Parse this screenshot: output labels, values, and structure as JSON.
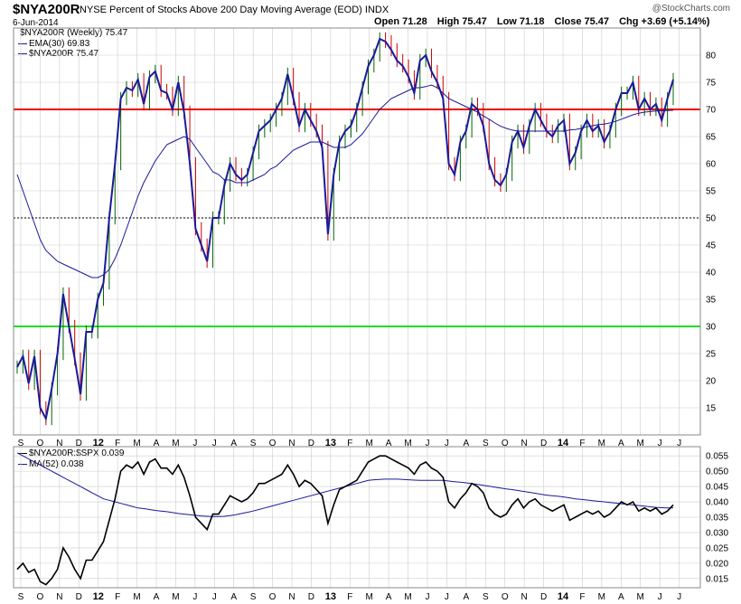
{
  "header": {
    "symbol": "$NYA200R",
    "description": "NYSE Percent of Stocks Above 200 Day Moving Average (EOD)  INDX",
    "date": "6-Jun-2014",
    "logo": "@StockCharts.com",
    "ohlc": {
      "open": "Open 71.28",
      "high": "High 75.47",
      "low": "Low 71.18",
      "close": "Close 75.47",
      "chg": "Chg +3.69 (+5.14%)"
    }
  },
  "colors": {
    "price": "#1a1a99",
    "ema": "#1a1a99",
    "up": "#006600",
    "down": "#cc0000",
    "red_line": "#ee0000",
    "green_line": "#22dd22",
    "ratio": "#000000",
    "ma": "#1a1a99",
    "grid": "#cccccc"
  },
  "chart_data": [
    {
      "type": "line",
      "legend": [
        "$NYA200R (Weekly) 75.47",
        "EMA(30) 69.83",
        "$NYA200R 75.47"
      ],
      "x_tick_labels": [
        "S",
        "O",
        "N",
        "D",
        "12",
        "F",
        "M",
        "A",
        "M",
        "J",
        "J",
        "A",
        "S",
        "O",
        "N",
        "D",
        "13",
        "F",
        "M",
        "A",
        "M",
        "J",
        "J",
        "A",
        "S",
        "O",
        "N",
        "D",
        "14",
        "F",
        "M",
        "A",
        "M",
        "J",
        "J"
      ],
      "y_ticks": [
        15,
        20,
        25,
        30,
        35,
        40,
        45,
        50,
        55,
        60,
        65,
        70,
        75,
        80
      ],
      "ylim": [
        10,
        85
      ],
      "horizontal_lines": [
        70,
        50,
        30
      ],
      "series": [
        {
          "values": [
            22.5,
            24.5,
            19.5,
            24.5,
            15,
            13,
            18.5,
            25,
            36,
            30,
            24,
            17.5,
            29,
            29,
            35,
            38,
            50,
            60,
            72,
            74,
            73.5,
            75.5,
            71,
            76,
            77,
            73.5,
            73,
            70,
            75,
            69.5,
            60,
            48,
            45,
            42,
            50,
            50,
            56,
            60,
            58,
            57,
            58,
            62,
            66,
            67,
            68,
            70,
            72,
            76.5,
            72,
            67,
            70,
            68,
            66,
            63,
            47,
            58,
            64,
            66,
            67,
            70,
            74,
            78,
            80,
            83,
            82.5,
            81,
            79,
            78,
            76,
            73,
            79,
            80,
            77,
            75,
            72,
            60,
            58,
            64,
            66,
            71,
            70,
            67,
            60,
            57,
            56,
            58,
            64,
            66,
            63,
            67,
            70,
            68,
            66,
            65,
            67,
            68,
            60,
            62,
            66,
            68,
            66,
            67,
            64,
            66,
            70,
            73,
            73,
            75,
            70,
            72,
            70,
            71,
            68,
            72,
            75.5
          ]
        },
        {
          "values": [
            58,
            55,
            52,
            49,
            46,
            44,
            43,
            42,
            41.5,
            41,
            40.5,
            40,
            39.5,
            39,
            39,
            39.5,
            40.5,
            42.5,
            45,
            48,
            51,
            54,
            56.5,
            58.5,
            60.5,
            62,
            63.5,
            64,
            64.5,
            65,
            64.5,
            63,
            61.5,
            60,
            58.5,
            58,
            57,
            57,
            56.5,
            56.5,
            56.5,
            57,
            57.5,
            58,
            59,
            59.5,
            60.5,
            61.5,
            62.5,
            63,
            63.5,
            64,
            64,
            64,
            63.5,
            63,
            63,
            63,
            63.5,
            64.5,
            65.5,
            67,
            68.5,
            70,
            71,
            72,
            72.5,
            73,
            73.5,
            74,
            74,
            74.2,
            74.5,
            74,
            73,
            72,
            71.5,
            71,
            70.5,
            70,
            69.5,
            68.8,
            68.2,
            67.5,
            66.9,
            66.5,
            66.2,
            66,
            66,
            66,
            66,
            66,
            66,
            66,
            66,
            66,
            66.2,
            66.3,
            66.5,
            66.8,
            67,
            67.2,
            67.3,
            67.5,
            67.8,
            68.2,
            68.6,
            69,
            69.3,
            69.5,
            69.6,
            69.7,
            69.75,
            69.8,
            69.83
          ]
        }
      ]
    },
    {
      "type": "line",
      "legend": [
        "$NYA200R:$SPX 0.039",
        "MA(52) 0.038"
      ],
      "x_tick_labels": [
        "S",
        "O",
        "N",
        "D",
        "12",
        "F",
        "M",
        "A",
        "M",
        "J",
        "J",
        "A",
        "S",
        "O",
        "N",
        "D",
        "13",
        "F",
        "M",
        "A",
        "M",
        "J",
        "J",
        "A",
        "S",
        "O",
        "N",
        "D",
        "14",
        "F",
        "M",
        "A",
        "M",
        "J",
        "J"
      ],
      "y_ticks": [
        0.015,
        0.02,
        0.025,
        0.03,
        0.035,
        0.04,
        0.045,
        0.05,
        0.055
      ],
      "ylim": [
        0.012,
        0.058
      ],
      "series": [
        {
          "values": [
            0.018,
            0.02,
            0.017,
            0.018,
            0.014,
            0.013,
            0.015,
            0.018,
            0.025,
            0.022,
            0.018,
            0.015,
            0.021,
            0.021,
            0.024,
            0.027,
            0.034,
            0.041,
            0.05,
            0.052,
            0.051,
            0.053,
            0.049,
            0.053,
            0.054,
            0.051,
            0.051,
            0.049,
            0.052,
            0.048,
            0.042,
            0.035,
            0.033,
            0.031,
            0.036,
            0.036,
            0.039,
            0.042,
            0.041,
            0.04,
            0.041,
            0.043,
            0.046,
            0.046,
            0.047,
            0.048,
            0.049,
            0.052,
            0.049,
            0.045,
            0.047,
            0.046,
            0.044,
            0.042,
            0.033,
            0.039,
            0.044,
            0.045,
            0.046,
            0.047,
            0.05,
            0.053,
            0.054,
            0.055,
            0.055,
            0.054,
            0.053,
            0.052,
            0.051,
            0.049,
            0.052,
            0.053,
            0.051,
            0.05,
            0.048,
            0.04,
            0.038,
            0.041,
            0.043,
            0.046,
            0.045,
            0.043,
            0.038,
            0.036,
            0.035,
            0.036,
            0.039,
            0.041,
            0.038,
            0.04,
            0.041,
            0.039,
            0.038,
            0.037,
            0.038,
            0.039,
            0.034,
            0.035,
            0.036,
            0.037,
            0.036,
            0.037,
            0.035,
            0.036,
            0.038,
            0.04,
            0.039,
            0.04,
            0.037,
            0.038,
            0.037,
            0.038,
            0.036,
            0.037,
            0.039
          ]
        },
        {
          "values": [
            0.056,
            0.055,
            0.054,
            0.053,
            0.052,
            0.051,
            0.05,
            0.049,
            0.048,
            0.047,
            0.046,
            0.045,
            0.044,
            0.043,
            0.042,
            0.041,
            0.0405,
            0.04,
            0.0395,
            0.039,
            0.0385,
            0.038,
            0.0378,
            0.0375,
            0.0372,
            0.037,
            0.0368,
            0.0365,
            0.0362,
            0.036,
            0.0358,
            0.0356,
            0.0354,
            0.0353,
            0.0352,
            0.0352,
            0.0353,
            0.0355,
            0.0358,
            0.0362,
            0.0366,
            0.037,
            0.0375,
            0.038,
            0.0385,
            0.039,
            0.0395,
            0.04,
            0.0405,
            0.041,
            0.0415,
            0.042,
            0.0425,
            0.043,
            0.0435,
            0.044,
            0.0445,
            0.045,
            0.0455,
            0.046,
            0.0465,
            0.047,
            0.0472,
            0.0473,
            0.0474,
            0.0474,
            0.0474,
            0.0473,
            0.0472,
            0.0471,
            0.047,
            0.047,
            0.047,
            0.047,
            0.047,
            0.0468,
            0.0466,
            0.0464,
            0.0462,
            0.046,
            0.0457,
            0.0454,
            0.0451,
            0.0448,
            0.0445,
            0.0442,
            0.044,
            0.0437,
            0.0434,
            0.0431,
            0.0428,
            0.0425,
            0.0422,
            0.042,
            0.0418,
            0.0416,
            0.0413,
            0.041,
            0.0408,
            0.0406,
            0.0404,
            0.0402,
            0.04,
            0.0398,
            0.0396,
            0.0394,
            0.0392,
            0.039,
            0.0388,
            0.0386,
            0.0384,
            0.0382,
            0.0381,
            0.038,
            0.038
          ]
        }
      ]
    }
  ]
}
